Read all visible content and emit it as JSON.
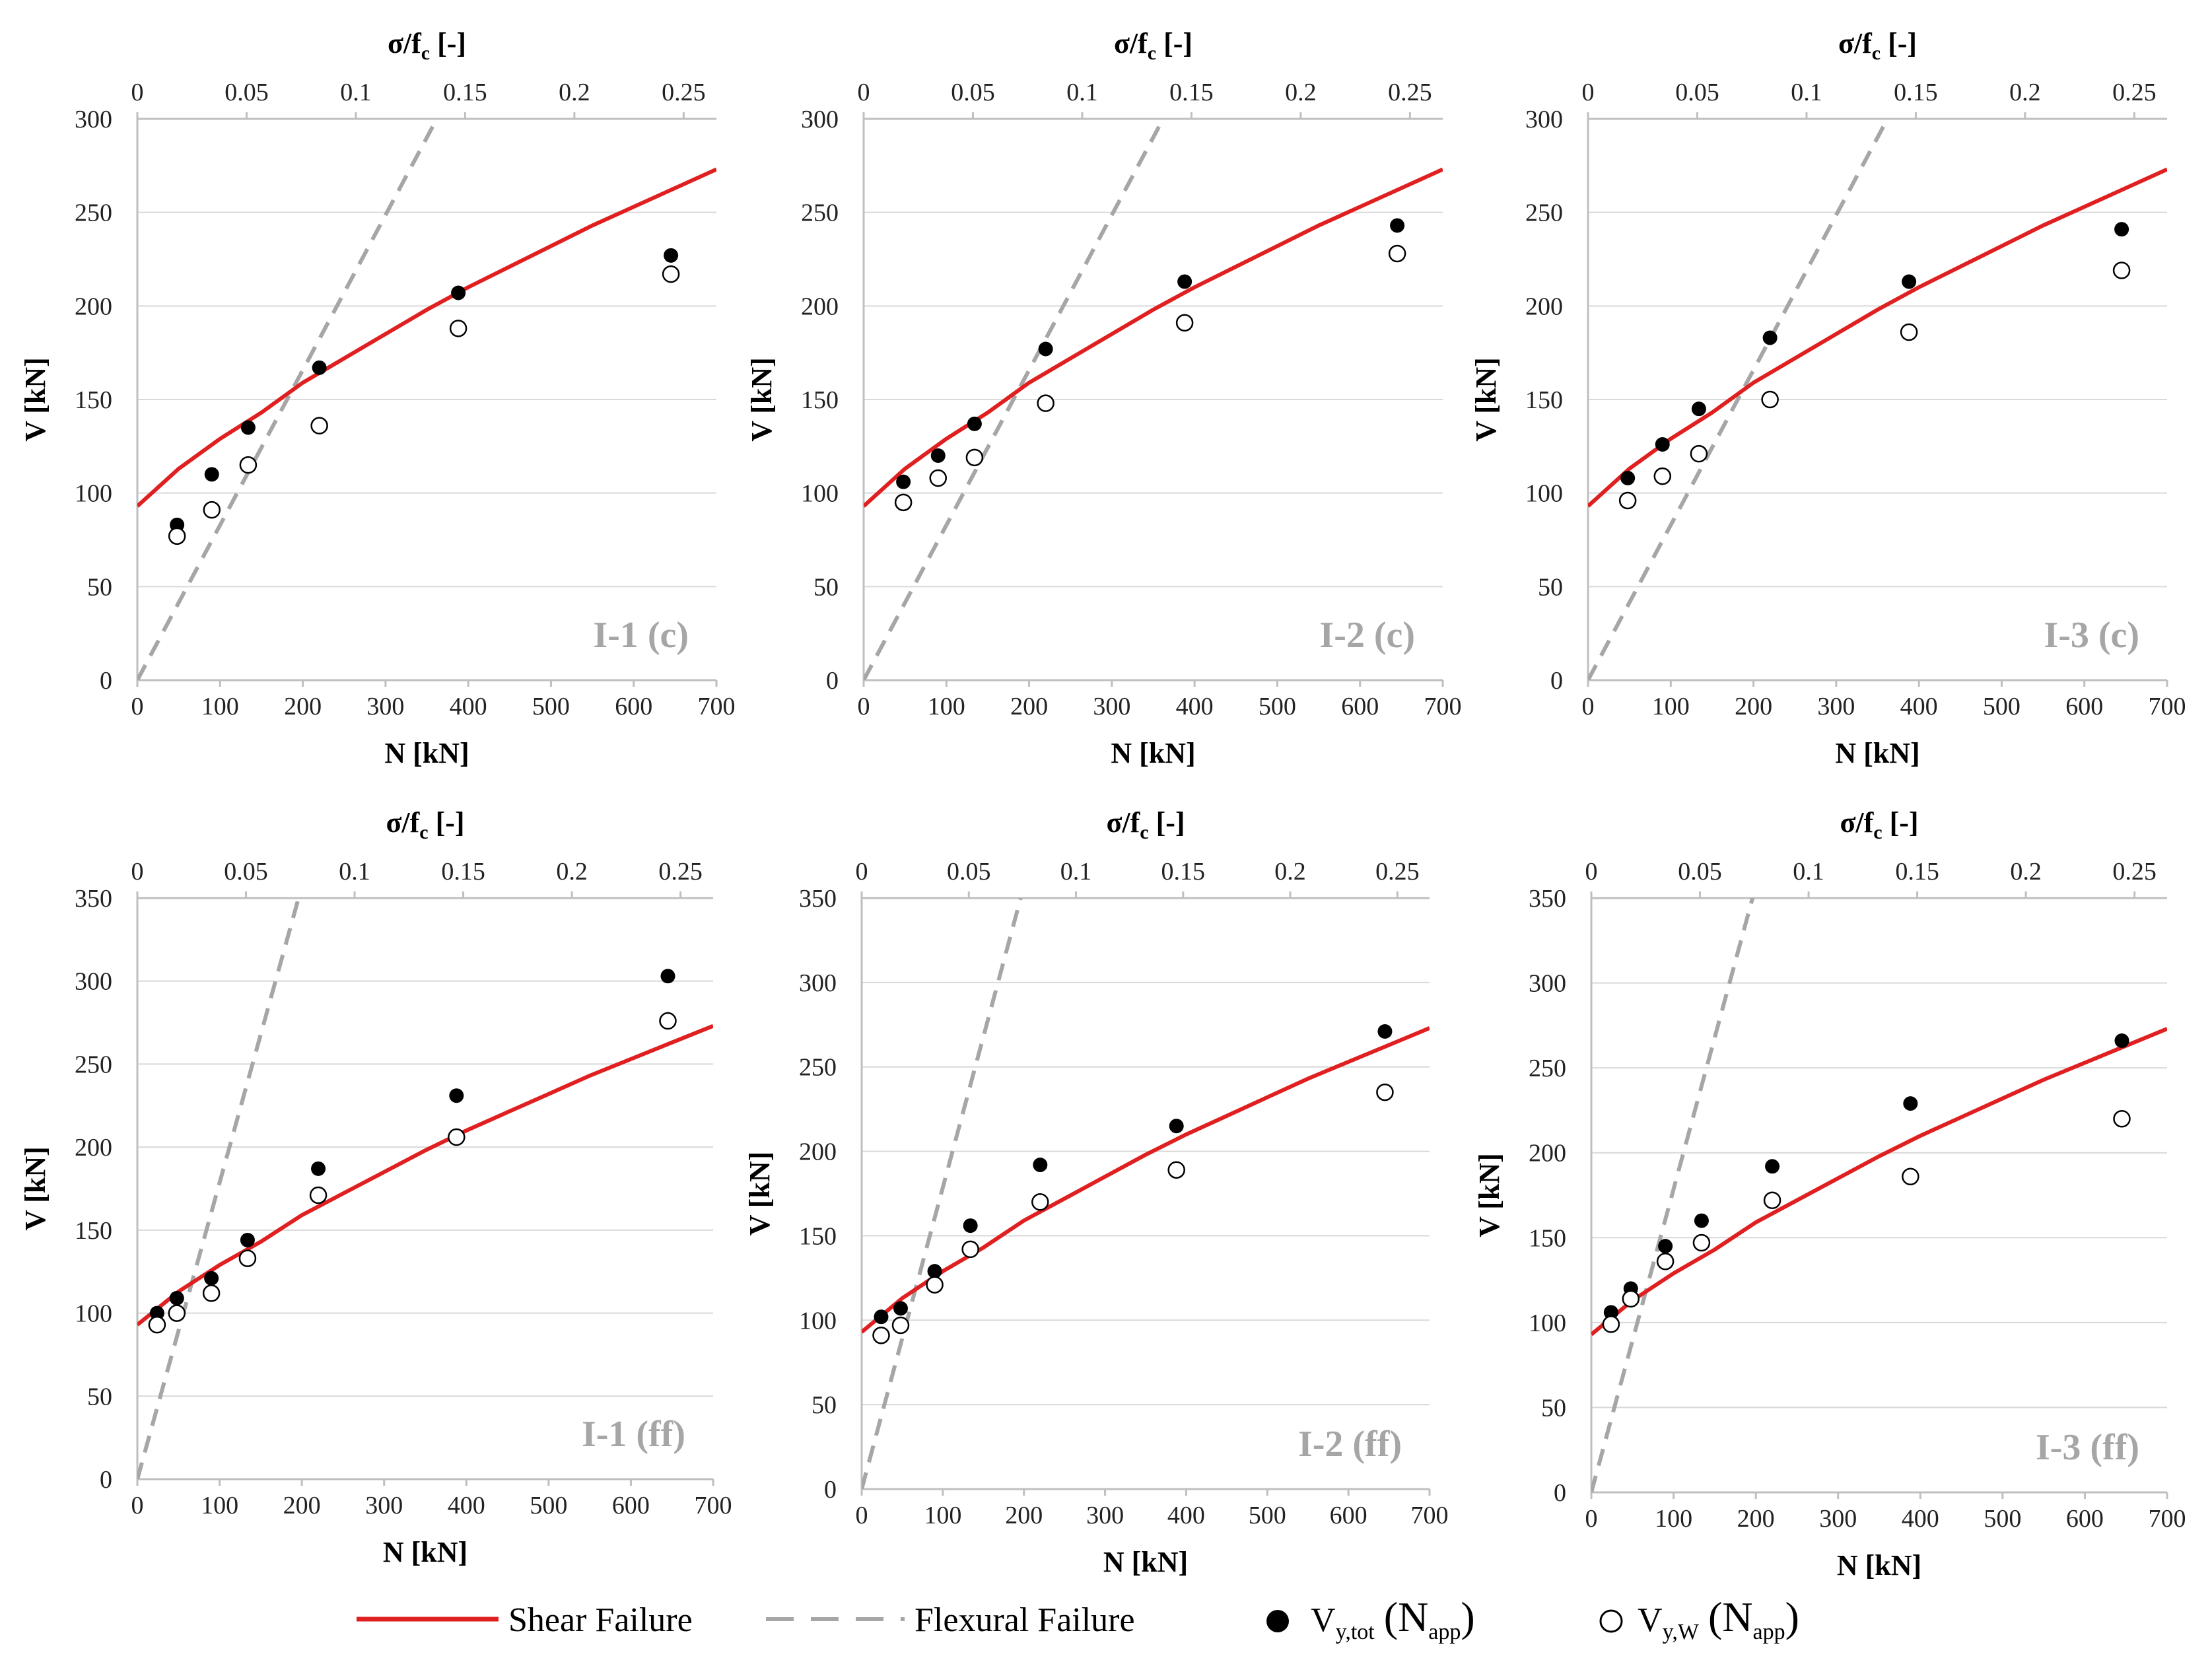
{
  "colors": {
    "shear": "#e02020",
    "flexural": "#a6a6a6",
    "marker": "#000000",
    "gridline": "#d9d9d9",
    "axis": "#bfbfbf",
    "panel_label": "#a6a6a6"
  },
  "legend": {
    "shear_label": "Shear Failure",
    "flexural_label": "Flexural Failure",
    "vtot_main": "V",
    "vtot_sub": "y,tot",
    "vtot_paren_open": "(N",
    "vtot_paren_sub": "app",
    "vtot_paren_close": ")",
    "vw_main": "V",
    "vw_sub": "y,W",
    "vw_paren_open": "(N",
    "vw_paren_sub": "app",
    "vw_paren_close": ")"
  },
  "chart_data": [
    {
      "type": "scatter",
      "panel_label": "I-1 (c)",
      "xlabel": "N [kN]",
      "x2label_main": "σ/f",
      "x2label_sub": "c",
      "x2label_rest": " [-]",
      "ylabel": "V [kN]",
      "xlim": [
        0,
        700
      ],
      "ylim": [
        0,
        300
      ],
      "x_ticks": [
        0,
        100,
        200,
        300,
        400,
        500,
        600,
        700
      ],
      "y_ticks": [
        0,
        50,
        100,
        150,
        200,
        250,
        300
      ],
      "x2_ticks": [
        "0",
        "0.05",
        "0.1",
        "0.15",
        "0.2",
        "0.25"
      ],
      "x2_max": 0.265,
      "grid": "horizontal",
      "shear_curve": {
        "x": [
          0,
          50,
          100,
          150,
          200,
          250,
          300,
          350,
          400,
          450,
          500,
          550,
          600,
          650,
          700
        ],
        "y": [
          93,
          113,
          129,
          143,
          159,
          172,
          185,
          198,
          210,
          221,
          232,
          243,
          253,
          263,
          273
        ]
      },
      "flexural_line": {
        "x": [
          0,
          362
        ],
        "y": [
          0,
          300
        ]
      },
      "series": [
        {
          "key": "vtot",
          "x": [
            48,
            90,
            134,
            220,
            388,
            645
          ],
          "y": [
            83,
            110,
            135,
            167,
            207,
            227
          ]
        },
        {
          "key": "vw",
          "x": [
            48,
            90,
            134,
            220,
            388,
            645
          ],
          "y": [
            77,
            91,
            115,
            136,
            188,
            217
          ]
        }
      ]
    },
    {
      "type": "scatter",
      "panel_label": "I-2 (c)",
      "xlabel": "N [kN]",
      "x2label_main": "σ/f",
      "x2label_sub": "c",
      "x2label_rest": " [-]",
      "ylabel": "V [kN]",
      "xlim": [
        0,
        700
      ],
      "ylim": [
        0,
        300
      ],
      "x_ticks": [
        0,
        100,
        200,
        300,
        400,
        500,
        600,
        700
      ],
      "y_ticks": [
        0,
        50,
        100,
        150,
        200,
        250,
        300
      ],
      "x2_ticks": [
        "0",
        "0.05",
        "0.1",
        "0.15",
        "0.2",
        "0.25"
      ],
      "x2_max": 0.265,
      "grid": "horizontal",
      "shear_curve": {
        "x": [
          0,
          50,
          100,
          150,
          200,
          250,
          300,
          350,
          400,
          450,
          500,
          550,
          600,
          650,
          700
        ],
        "y": [
          93,
          113,
          129,
          143,
          159,
          172,
          185,
          198,
          210,
          221,
          232,
          243,
          253,
          263,
          273
        ]
      },
      "flexural_line": {
        "x": [
          0,
          362
        ],
        "y": [
          0,
          300
        ]
      },
      "series": [
        {
          "key": "vtot",
          "x": [
            48,
            90,
            134,
            220,
            388,
            645
          ],
          "y": [
            106,
            120,
            137,
            177,
            213,
            243
          ]
        },
        {
          "key": "vw",
          "x": [
            48,
            90,
            134,
            220,
            388,
            645
          ],
          "y": [
            95,
            108,
            119,
            148,
            191,
            228
          ]
        }
      ]
    },
    {
      "type": "scatter",
      "panel_label": "I-3 (c)",
      "xlabel": "N [kN]",
      "x2label_main": "σ/f",
      "x2label_sub": "c",
      "x2label_rest": " [-]",
      "ylabel": "V [kN]",
      "xlim": [
        0,
        700
      ],
      "ylim": [
        0,
        300
      ],
      "x_ticks": [
        0,
        100,
        200,
        300,
        400,
        500,
        600,
        700
      ],
      "y_ticks": [
        0,
        50,
        100,
        150,
        200,
        250,
        300
      ],
      "x2_ticks": [
        "0",
        "0.05",
        "0.1",
        "0.15",
        "0.2",
        "0.25"
      ],
      "x2_max": 0.265,
      "grid": "horizontal",
      "shear_curve": {
        "x": [
          0,
          50,
          100,
          150,
          200,
          250,
          300,
          350,
          400,
          450,
          500,
          550,
          600,
          650,
          700
        ],
        "y": [
          93,
          113,
          129,
          143,
          159,
          172,
          185,
          198,
          210,
          221,
          232,
          243,
          253,
          263,
          273
        ]
      },
      "flexural_line": {
        "x": [
          0,
          362
        ],
        "y": [
          0,
          300
        ]
      },
      "series": [
        {
          "key": "vtot",
          "x": [
            48,
            90,
            134,
            220,
            388,
            645
          ],
          "y": [
            108,
            126,
            145,
            183,
            213,
            241
          ]
        },
        {
          "key": "vw",
          "x": [
            48,
            90,
            134,
            220,
            388,
            645
          ],
          "y": [
            96,
            109,
            121,
            150,
            186,
            219
          ]
        }
      ]
    },
    {
      "type": "scatter",
      "panel_label": "I-1 (ff)",
      "xlabel": "N [kN]",
      "x2label_main": "σ/f",
      "x2label_sub": "c",
      "x2label_rest": " [-]",
      "ylabel": "V [kN]",
      "xlim": [
        0,
        700
      ],
      "ylim": [
        0,
        350
      ],
      "x_ticks": [
        0,
        100,
        200,
        300,
        400,
        500,
        600,
        700
      ],
      "y_ticks": [
        0,
        50,
        100,
        150,
        200,
        250,
        300,
        350
      ],
      "x2_ticks": [
        "0",
        "0.05",
        "0.1",
        "0.15",
        "0.2",
        "0.25"
      ],
      "x2_max": 0.265,
      "grid": "horizontal",
      "shear_curve": {
        "x": [
          0,
          50,
          100,
          150,
          200,
          250,
          300,
          350,
          400,
          450,
          500,
          550,
          600,
          650,
          700
        ],
        "y": [
          93,
          113,
          129,
          143,
          159,
          172,
          185,
          198,
          210,
          221,
          232,
          243,
          253,
          263,
          273
        ]
      },
      "flexural_line": {
        "x": [
          0,
          196
        ],
        "y": [
          0,
          350
        ]
      },
      "series": [
        {
          "key": "vtot",
          "x": [
            24,
            48,
            90,
            134,
            220,
            388,
            645
          ],
          "y": [
            100,
            109,
            121,
            144,
            187,
            231,
            303
          ]
        },
        {
          "key": "vw",
          "x": [
            24,
            48,
            90,
            134,
            220,
            388,
            645
          ],
          "y": [
            93,
            100,
            112,
            133,
            171,
            206,
            276
          ]
        }
      ]
    },
    {
      "type": "scatter",
      "panel_label": "I-2 (ff)",
      "xlabel": "N [kN]",
      "x2label_main": "σ/f",
      "x2label_sub": "c",
      "x2label_rest": " [-]",
      "ylabel": "V [kN]",
      "xlim": [
        0,
        700
      ],
      "ylim": [
        0,
        350
      ],
      "x_ticks": [
        0,
        100,
        200,
        300,
        400,
        500,
        600,
        700
      ],
      "y_ticks": [
        0,
        50,
        100,
        150,
        200,
        250,
        300,
        350
      ],
      "x2_ticks": [
        "0",
        "0.05",
        "0.1",
        "0.15",
        "0.2",
        "0.25"
      ],
      "x2_max": 0.265,
      "grid": "horizontal",
      "shear_curve": {
        "x": [
          0,
          50,
          100,
          150,
          200,
          250,
          300,
          350,
          400,
          450,
          500,
          550,
          600,
          650,
          700
        ],
        "y": [
          93,
          113,
          129,
          143,
          159,
          172,
          185,
          198,
          210,
          221,
          232,
          243,
          253,
          263,
          273
        ]
      },
      "flexural_line": {
        "x": [
          0,
          196
        ],
        "y": [
          0,
          350
        ]
      },
      "series": [
        {
          "key": "vtot",
          "x": [
            24,
            48,
            90,
            134,
            220,
            388,
            645
          ],
          "y": [
            102,
            107,
            129,
            156,
            192,
            215,
            271
          ]
        },
        {
          "key": "vw",
          "x": [
            24,
            48,
            90,
            134,
            220,
            388,
            645
          ],
          "y": [
            91,
            97,
            121,
            142,
            170,
            189,
            235
          ]
        }
      ]
    },
    {
      "type": "scatter",
      "panel_label": "I-3 (ff)",
      "xlabel": "N [kN]",
      "x2label_main": "σ/f",
      "x2label_sub": "c",
      "x2label_rest": " [-]",
      "ylabel": "V [kN]",
      "xlim": [
        0,
        700
      ],
      "ylim": [
        0,
        350
      ],
      "x_ticks": [
        0,
        100,
        200,
        300,
        400,
        500,
        600,
        700
      ],
      "y_ticks": [
        0,
        50,
        100,
        150,
        200,
        250,
        300,
        350
      ],
      "x2_ticks": [
        "0",
        "0.05",
        "0.1",
        "0.15",
        "0.2",
        "0.25"
      ],
      "x2_max": 0.265,
      "grid": "horizontal",
      "shear_curve": {
        "x": [
          0,
          50,
          100,
          150,
          200,
          250,
          300,
          350,
          400,
          450,
          500,
          550,
          600,
          650,
          700
        ],
        "y": [
          93,
          113,
          129,
          143,
          159,
          172,
          185,
          198,
          210,
          221,
          232,
          243,
          253,
          263,
          273
        ]
      },
      "flexural_line": {
        "x": [
          0,
          196
        ],
        "y": [
          0,
          350
        ]
      },
      "series": [
        {
          "key": "vtot",
          "x": [
            24,
            48,
            90,
            134,
            220,
            388,
            645
          ],
          "y": [
            106,
            120,
            145,
            160,
            192,
            229,
            266
          ]
        },
        {
          "key": "vw",
          "x": [
            24,
            48,
            90,
            134,
            220,
            388,
            645
          ],
          "y": [
            99,
            114,
            136,
            147,
            172,
            186,
            220
          ]
        }
      ]
    }
  ]
}
